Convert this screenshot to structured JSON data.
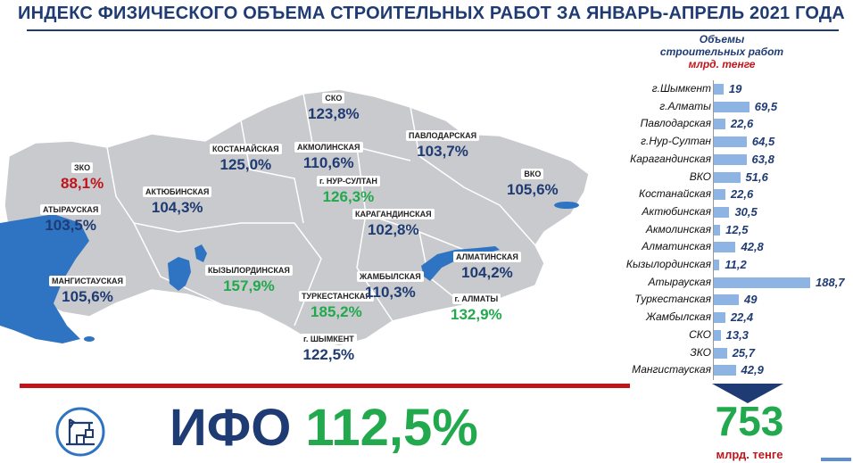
{
  "title": "ИНДЕКС ФИЗИЧЕСКОГО ОБЪЕМА СТРОИТЕЛЬНЫХ РАБОТ ЗА ЯНВАРЬ-АПРЕЛЬ  2021 ГОДА",
  "colors": {
    "primary": "#1f3b73",
    "green": "#22a94d",
    "red": "#c0151b",
    "bar": "#8eb4e3",
    "sea": "#2e74c2",
    "land": "#c8cacd"
  },
  "regions": [
    {
      "name": "ЗКО",
      "value": "88,1%",
      "color": "#c0151b"
    },
    {
      "name": "АТЫРАУСКАЯ",
      "value": "103,5%",
      "color": "#1f3b73"
    },
    {
      "name": "МАНГИСТАУСКАЯ",
      "value": "105,6%",
      "color": "#1f3b73"
    },
    {
      "name": "АКТЮБИНСКАЯ",
      "value": "104,3%",
      "color": "#1f3b73"
    },
    {
      "name": "КОСТАНАЙСКАЯ",
      "value": "125,0%",
      "color": "#1f3b73"
    },
    {
      "name": "СКО",
      "value": "123,8%",
      "color": "#1f3b73"
    },
    {
      "name": "АКМОЛИНСКАЯ",
      "value": "110,6%",
      "color": "#1f3b73"
    },
    {
      "name": "г. НУР-СУЛТАН",
      "value": "126,3%",
      "color": "#22a94d"
    },
    {
      "name": "ПАВЛОДАРСКАЯ",
      "value": "103,7%",
      "color": "#1f3b73"
    },
    {
      "name": "ВКО",
      "value": "105,6%",
      "color": "#1f3b73"
    },
    {
      "name": "КАРАГАНДИНСКАЯ",
      "value": "102,8%",
      "color": "#1f3b73"
    },
    {
      "name": "КЫЗЫЛОРДИНСКАЯ",
      "value": "157,9%",
      "color": "#22a94d"
    },
    {
      "name": "ТУРКЕСТАНСКАЯ",
      "value": "185,2%",
      "color": "#22a94d"
    },
    {
      "name": "ЖАМБЫЛСКАЯ",
      "value": "110,3%",
      "color": "#1f3b73"
    },
    {
      "name": "АЛМАТИНСКАЯ",
      "value": "104,2%",
      "color": "#1f3b73"
    },
    {
      "name": "г. АЛМАТЫ",
      "value": "132,9%",
      "color": "#22a94d"
    },
    {
      "name": "г. ШЫМКЕНТ",
      "value": "122,5%",
      "color": "#1f3b73"
    }
  ],
  "volumes_header": {
    "line1": "Объемы",
    "line2": "строительных работ",
    "unit": "млрд. тенге"
  },
  "chart_data": {
    "type": "bar",
    "orientation": "horizontal",
    "title": "Объемы строительных работ",
    "unit": "млрд. тенге",
    "categories": [
      "г.Шымкент",
      "г.Алматы",
      "Павлодарская",
      "г.Нур-Султан",
      "Карагандинская",
      "ВКО",
      "Костанайская",
      "Актюбинская",
      "Акмолинская",
      "Алматинская",
      "Кызылординская",
      "Атырауская",
      "Туркестанская",
      "Жамбылская",
      "СКО",
      "ЗКО",
      "Мангистауская"
    ],
    "values": [
      19,
      69.5,
      22.6,
      64.5,
      63.8,
      51.6,
      22.6,
      30.5,
      12.5,
      42.8,
      11.2,
      188.7,
      49,
      22.4,
      13.3,
      25.7,
      42.9
    ],
    "value_labels": [
      "19",
      "69,5",
      "22,6",
      "64,5",
      "63,8",
      "51,6",
      "22,6",
      "30,5",
      "12,5",
      "42,8",
      "11,2",
      "188,7",
      "49",
      "22,4",
      "13,3",
      "25,7",
      "42,9"
    ],
    "xlim": [
      0,
      188.7
    ]
  },
  "ifo": {
    "label": "ИФО",
    "value": "112,5%"
  },
  "total": {
    "value": "753",
    "unit": "млрд. тенге"
  },
  "icons": {
    "construction": "crane-icon",
    "arrow": "down-arrow-icon"
  }
}
